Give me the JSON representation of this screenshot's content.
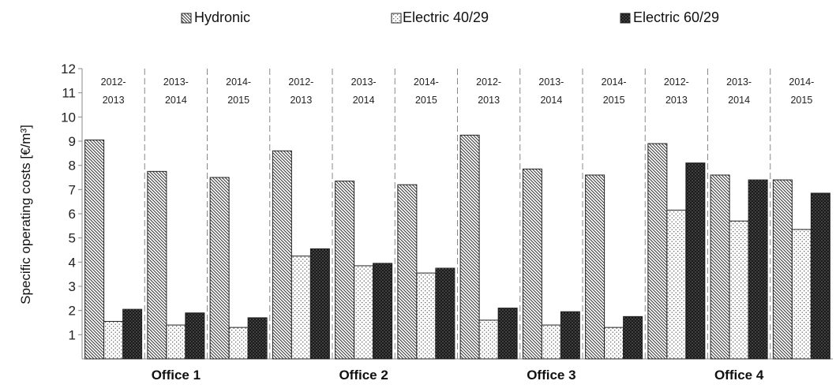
{
  "chart_data": {
    "type": "bar",
    "ylabel": "Specific operating costs [€/m³]",
    "ylim": [
      0,
      12
    ],
    "yticks": [
      1,
      2,
      3,
      4,
      5,
      6,
      7,
      8,
      9,
      10,
      11,
      12
    ],
    "grid": false,
    "legend_position": "top",
    "groups": [
      {
        "name": "Office 1",
        "periods": [
          "2012-2013",
          "2013-2014",
          "2014-2015"
        ]
      },
      {
        "name": "Office 2",
        "periods": [
          "2012-2013",
          "2013-2014",
          "2014-2015"
        ]
      },
      {
        "name": "Office 3",
        "periods": [
          "2012-2013",
          "2013-2014",
          "2014-2015"
        ]
      },
      {
        "name": "Office 4",
        "periods": [
          "2012-2013",
          "2013-2014",
          "2014-2015"
        ]
      }
    ],
    "series": [
      {
        "name": "Hydronic",
        "pattern": "diagonal-hatch",
        "values": [
          9.05,
          7.75,
          7.5,
          8.6,
          7.35,
          7.2,
          9.25,
          7.85,
          7.6,
          8.9,
          7.6,
          7.4
        ]
      },
      {
        "name": "Electric 40/29",
        "pattern": "light-dots",
        "values": [
          1.55,
          1.4,
          1.3,
          4.25,
          3.85,
          3.55,
          1.6,
          1.4,
          1.3,
          6.15,
          5.7,
          5.35
        ]
      },
      {
        "name": "Electric 60/29",
        "pattern": "dark-dots",
        "values": [
          2.05,
          1.9,
          1.7,
          4.55,
          3.95,
          3.75,
          2.1,
          1.95,
          1.75,
          8.1,
          7.4,
          6.85
        ]
      }
    ]
  }
}
